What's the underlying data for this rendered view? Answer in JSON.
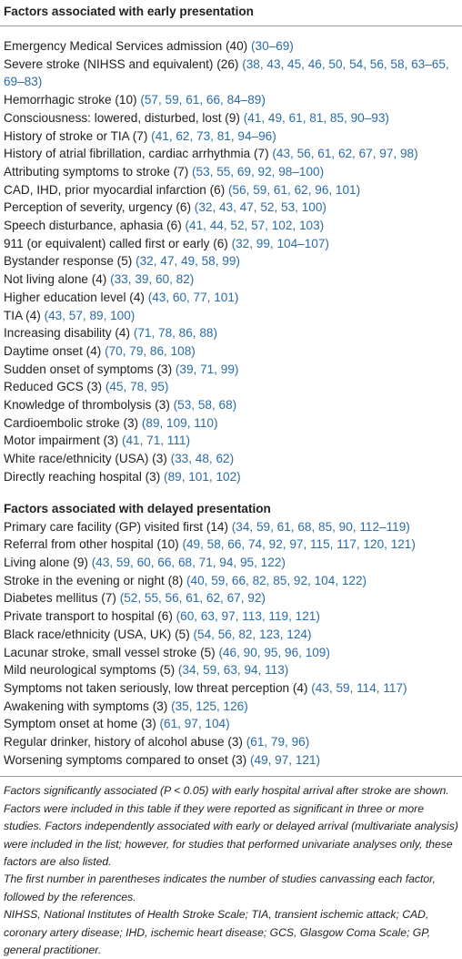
{
  "sections": [
    {
      "title": "Factors associated with early presentation",
      "rows": [
        {
          "label": "Emergency Medical Services admission (40)",
          "refs": "(30–69)"
        },
        {
          "label": "Severe stroke (NIHSS and equivalent) (26)",
          "refs": "(38, 43, 45, 46, 50, 54, 56, 58, 63–65, 69–83)"
        },
        {
          "label": "Hemorrhagic stroke (10)",
          "refs": "(57, 59, 61, 66, 84–89)"
        },
        {
          "label": "Consciousness: lowered, disturbed, lost (9)",
          "refs": "(41, 49, 61, 81, 85, 90–93)"
        },
        {
          "label": "History of stroke or TIA (7)",
          "refs": "(41, 62, 73, 81, 94–96)"
        },
        {
          "label": "History of atrial fibrillation, cardiac arrhythmia (7)",
          "refs": "(43, 56, 61, 62, 67, 97, 98)"
        },
        {
          "label": "Attributing symptoms to stroke (7)",
          "refs": "(53, 55, 69, 92, 98–100)"
        },
        {
          "label": "CAD, IHD, prior myocardial infarction (6)",
          "refs": "(56, 59, 61, 62, 96, 101)"
        },
        {
          "label": "Perception of severity, urgency (6)",
          "refs": "(32, 43, 47, 52, 53, 100)"
        },
        {
          "label": "Speech disturbance, aphasia (6)",
          "refs": "(41, 44, 52, 57, 102, 103)"
        },
        {
          "label": "911 (or equivalent) called first or early (6)",
          "refs": "(32, 99, 104–107)"
        },
        {
          "label": "Bystander response (5)",
          "refs": "(32, 47, 49, 58, 99)"
        },
        {
          "label": "Not living alone (4)",
          "refs": "(33, 39, 60, 82)"
        },
        {
          "label": "Higher education level (4)",
          "refs": "(43, 60, 77, 101)"
        },
        {
          "label": "TIA (4)",
          "refs": "(43, 57, 89, 100)"
        },
        {
          "label": "Increasing disability (4)",
          "refs": "(71, 78, 86, 88)"
        },
        {
          "label": "Daytime onset (4)",
          "refs": "(70, 79, 86, 108)"
        },
        {
          "label": "Sudden onset of symptoms (3)",
          "refs": "(39, 71, 99)"
        },
        {
          "label": "Reduced GCS (3)",
          "refs": "(45, 78, 95)"
        },
        {
          "label": "Knowledge of thrombolysis (3)",
          "refs": "(53, 58, 68)"
        },
        {
          "label": "Cardioembolic stroke (3)",
          "refs": "(89, 109, 110)"
        },
        {
          "label": "Motor impairment (3)",
          "refs": "(41, 71, 111)"
        },
        {
          "label": "White race/ethnicity (USA) (3)",
          "refs": "(33, 48, 62)"
        },
        {
          "label": "Directly reaching hospital (3)",
          "refs": "(89, 101, 102)"
        }
      ]
    },
    {
      "title": "Factors associated with delayed presentation",
      "rows": [
        {
          "label": "Primary care facility (GP) visited first (14)",
          "refs": "(34, 59, 61, 68, 85, 90, 112–119)"
        },
        {
          "label": "Referral from other hospital (10)",
          "refs": "(49, 58, 66, 74, 92, 97, 115, 117, 120, 121)"
        },
        {
          "label": "Living alone (9)",
          "refs": "(43, 59, 60, 66, 68, 71, 94, 95, 122)"
        },
        {
          "label": "Stroke in the evening or night (8)",
          "refs": "(40, 59, 66, 82, 85, 92, 104, 122)"
        },
        {
          "label": "Diabetes mellitus (7)",
          "refs": "(52, 55, 56, 61, 62, 67, 92)"
        },
        {
          "label": "Private transport to hospital (6)",
          "refs": "(60, 63, 97, 113, 119, 121)"
        },
        {
          "label": "Black race/ethnicity (USA, UK) (5)",
          "refs": "(54, 56, 82, 123, 124)"
        },
        {
          "label": "Lacunar stroke, small vessel stroke (5)",
          "refs": "(46, 90, 95, 96, 109)"
        },
        {
          "label": "Mild neurological symptoms (5)",
          "refs": "(34, 59, 63, 94, 113)"
        },
        {
          "label": "Symptoms not taken seriously, low threat perception (4)",
          "refs": "(43, 59, 114, 117)"
        },
        {
          "label": "Awakening with symptoms (3)",
          "refs": "(35, 125, 126)"
        },
        {
          "label": "Symptom onset at home (3)",
          "refs": "(61, 97, 104)"
        },
        {
          "label": "Regular drinker, history of alcohol abuse (3)",
          "refs": "(61, 79, 96)"
        },
        {
          "label": "Worsening symptoms compared to onset (3)",
          "refs": "(49, 97, 121)"
        }
      ]
    }
  ],
  "notes": [
    "Factors significantly associated (P < 0.05) with early hospital arrival after stroke are shown. Factors were included in this table if they were reported as significant in three or more studies. Factors independently associated with early or delayed arrival (multivariate analysis) were included in the list; however, for studies that performed univariate analyses only, these factors are also listed.",
    "The first number in parentheses indicates the number of studies canvassing each factor, followed by the references.",
    "NIHSS, National Institutes of Health Stroke Scale; TIA, transient ischemic attack; CAD, coronary artery disease; IHD, ischemic heart disease; GCS, Glasgow Coma Scale; GP, general practitioner."
  ]
}
